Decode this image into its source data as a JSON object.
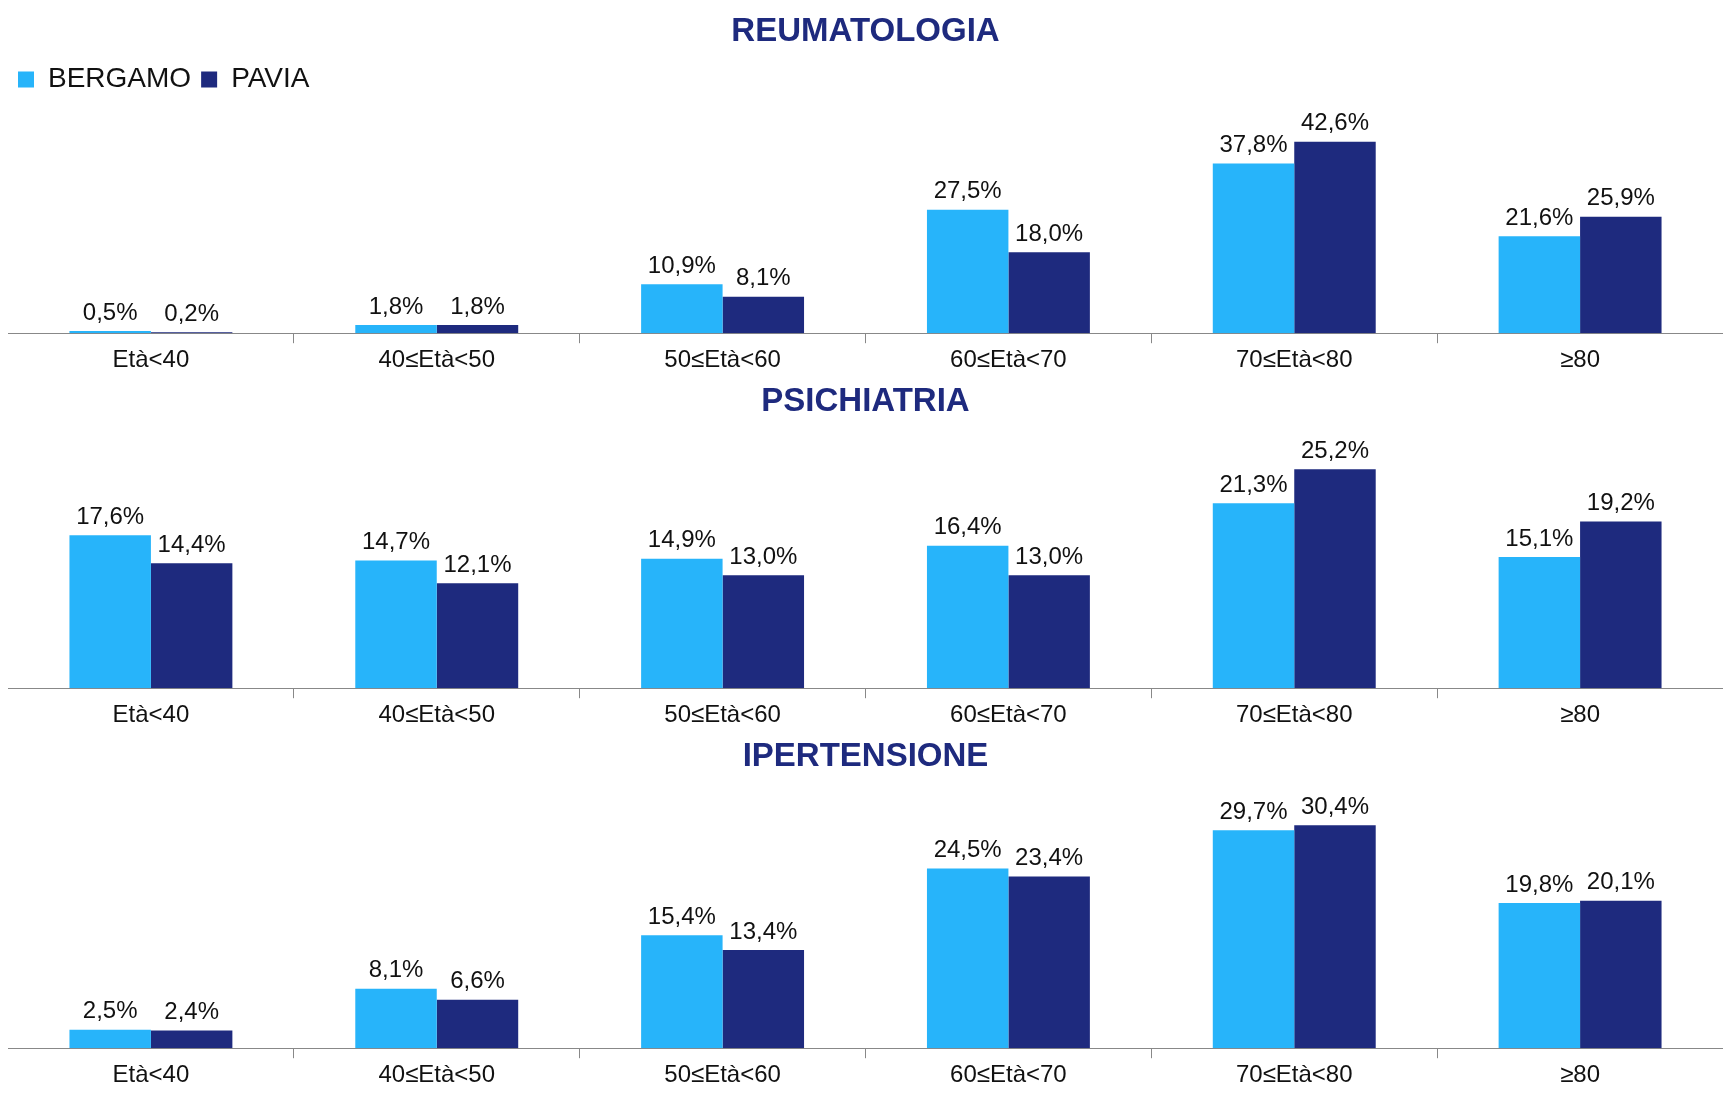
{
  "chart_data": [
    {
      "type": "bar",
      "title": "REUMATOLOGIA",
      "categories": [
        "Età<40",
        "40≤Età<50",
        "50≤Età<60",
        "60≤Età<70",
        "70≤Età<80",
        "≥80"
      ],
      "legend": "top left",
      "series": [
        {
          "name": "BERGAMO",
          "color": "#27b4fa",
          "values": [
            0.5,
            1.8,
            10.9,
            27.5,
            37.8,
            21.6
          ],
          "value_labels": [
            "0,5%",
            "1,8%",
            "10,9%",
            "27,5%",
            "37,8%",
            "21,6%"
          ]
        },
        {
          "name": "PAVIA",
          "color": "#1e2a7e",
          "values": [
            0.2,
            1.8,
            8.1,
            18.0,
            42.6,
            25.9
          ],
          "value_labels": [
            "0,2%",
            "1,8%",
            "8,1%",
            "18,0%",
            "42,6%",
            "25,9%"
          ]
        }
      ]
    },
    {
      "type": "bar",
      "title": "PSICHIATRIA",
      "categories": [
        "Età<40",
        "40≤Età<50",
        "50≤Età<60",
        "60≤Età<70",
        "70≤Età<80",
        "≥80"
      ],
      "series": [
        {
          "color": "#27b4fa",
          "values": [
            17.6,
            14.7,
            14.9,
            16.4,
            21.3,
            15.1
          ],
          "value_labels": [
            "17,6%",
            "14,7%",
            "14,9%",
            "16,4%",
            "21,3%",
            "15,1%"
          ]
        },
        {
          "color": "#1e2a7e",
          "values": [
            14.4,
            12.1,
            13.0,
            13.0,
            25.2,
            19.2
          ],
          "value_labels": [
            "14,4%",
            "12,1%",
            "13,0%",
            "13,0%",
            "25,2%",
            "19,2%"
          ]
        }
      ]
    },
    {
      "type": "bar",
      "title": "IPERTENSIONE",
      "categories": [
        "Età<40",
        "40≤Età<50",
        "50≤Età<60",
        "60≤Età<70",
        "70≤Età<80",
        "≥80"
      ],
      "series": [
        {
          "color": "#27b4fa",
          "values": [
            2.5,
            8.1,
            15.4,
            24.5,
            29.7,
            19.8
          ],
          "value_labels": [
            "2,5%",
            "8,1%",
            "15,4%",
            "24,5%",
            "29,7%",
            "19,8%"
          ]
        },
        {
          "color": "#1e2a7e",
          "values": [
            2.4,
            6.6,
            13.4,
            23.4,
            30.4,
            20.1
          ],
          "value_labels": [
            "2,4%",
            "6,6%",
            "13,4%",
            "23,4%",
            "30,4%",
            "20,1%"
          ]
        }
      ]
    }
  ]
}
